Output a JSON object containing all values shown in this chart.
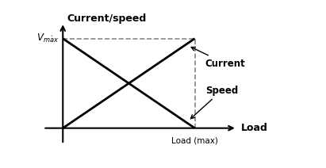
{
  "ylabel": "Current/speed",
  "xlabel": "Load",
  "xlabel_max": "Load (max)",
  "line_color": "#000000",
  "dashed_color": "#888888",
  "background_color": "#ffffff",
  "load_max": 1.0,
  "vmax": 1.0,
  "current_label": "Current",
  "speed_label": "Speed",
  "font_size_axis": 9,
  "font_size_labels": 8.5,
  "font_size_vmax": 8.5,
  "lw_main": 2.0,
  "lw_dashed": 1.2,
  "lw_axes": 1.5
}
